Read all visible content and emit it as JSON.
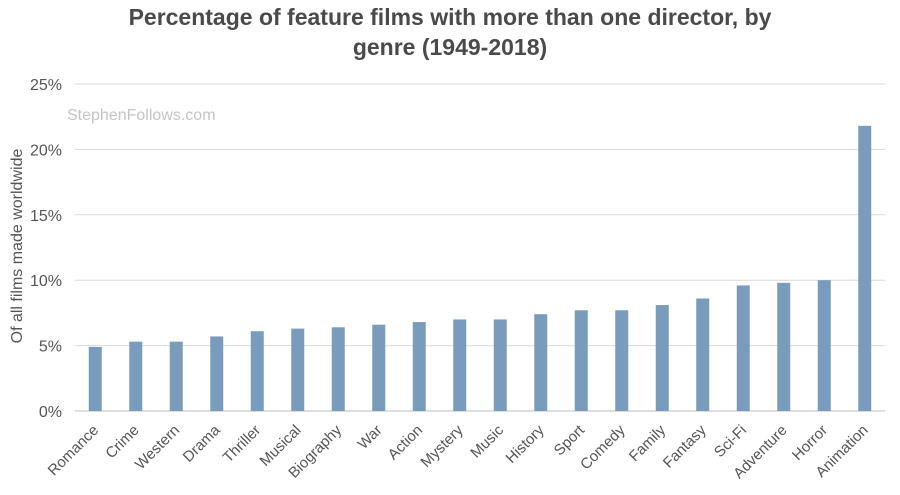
{
  "chart_data": {
    "type": "bar",
    "title": "Percentage of feature films with more than one director, by genre (1949-2018)",
    "title_lines": [
      "Percentage of feature films with more than one director, by",
      "genre (1949-2018)"
    ],
    "watermark": "StephenFollows.com",
    "xlabel": "",
    "ylabel": "Of all films made worldwide",
    "ylim": [
      0,
      25
    ],
    "yticks": [
      "0%",
      "5%",
      "10%",
      "15%",
      "20%",
      "25%"
    ],
    "ytick_values": [
      0,
      5,
      10,
      15,
      20,
      25
    ],
    "grid": true,
    "legend": "none",
    "bar_color": "#7a9cbc",
    "categories": [
      "Romance",
      "Crime",
      "Western",
      "Drama",
      "Thriller",
      "Musical",
      "Biography",
      "War",
      "Action",
      "Mystery",
      "Music",
      "History",
      "Sport",
      "Comedy",
      "Family",
      "Fantasy",
      "Sci-Fi",
      "Adventure",
      "Horror",
      "Animation"
    ],
    "values": [
      4.9,
      5.3,
      5.3,
      5.7,
      6.1,
      6.3,
      6.4,
      6.6,
      6.8,
      7.0,
      7.0,
      7.4,
      7.7,
      7.7,
      8.1,
      8.6,
      9.6,
      9.8,
      10.0,
      21.8
    ]
  }
}
